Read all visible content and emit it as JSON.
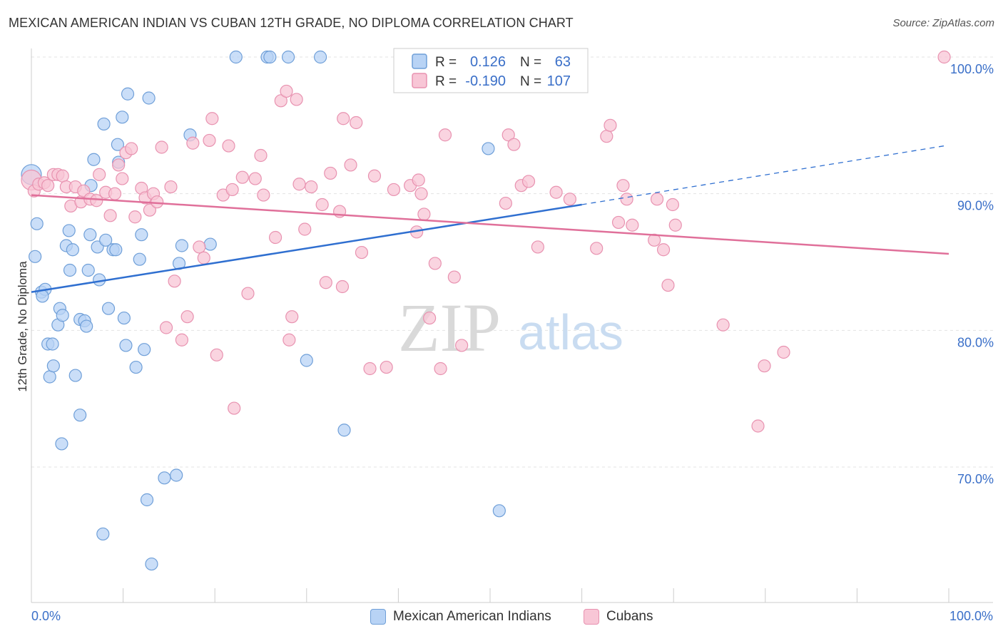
{
  "header": {
    "title": "MEXICAN AMERICAN INDIAN VS CUBAN 12TH GRADE, NO DIPLOMA CORRELATION CHART",
    "source": "Source: ZipAtlas.com"
  },
  "watermark": {
    "zip": "ZIP",
    "atlas": "atlas"
  },
  "colors": {
    "blue_fill": "#b8d3f5",
    "blue_stroke": "#6f9fd8",
    "blue_line": "#2f6fd0",
    "pink_fill": "#f8c6d6",
    "pink_stroke": "#e892b0",
    "pink_line": "#e0709a",
    "value_text": "#3a6fc8"
  },
  "legend": {
    "blue": {
      "r_label": "R =",
      "r_value": "0.126",
      "n_label": "N =",
      "n_value": "63"
    },
    "pink": {
      "r_label": "R =",
      "r_value": "-0.190",
      "n_label": "N =",
      "n_value": "107"
    }
  },
  "bottom_legend": [
    {
      "label": "Mexican American Indians",
      "color": "#b8d3f5",
      "stroke": "#6f9fd8"
    },
    {
      "label": "Cubans",
      "color": "#f8c6d6",
      "stroke": "#e892b0"
    }
  ],
  "chart_data": {
    "type": "scatter",
    "title": "MEXICAN AMERICAN INDIAN VS CUBAN 12TH GRADE, NO DIPLOMA CORRELATION CHART",
    "xlabel": "",
    "ylabel": "12th Grade, No Diploma",
    "xlim": [
      0,
      100
    ],
    "ylim": [
      60.5,
      101.5
    ],
    "x_tick_labels": [
      "0.0%",
      "100.0%"
    ],
    "y_ticks": [
      70,
      80,
      90,
      100
    ],
    "y_tick_labels": [
      "70.0%",
      "80.0%",
      "90.0%",
      "100.0%"
    ],
    "grid": true,
    "legend_placement": "top-center",
    "series": [
      {
        "name": "Mexican American Indians",
        "r": 0.126,
        "n": 63,
        "trend": {
          "x": [
            0,
            60
          ],
          "y": [
            82.8,
            89.2
          ],
          "dashed_extension": {
            "x": [
              60,
              99.5
            ],
            "y": [
              89.2,
              93.5
            ]
          }
        },
        "points": [
          [
            0,
            91.4
          ],
          [
            0.4,
            85.4
          ],
          [
            0.6,
            87.8
          ],
          [
            1.1,
            82.8
          ],
          [
            1.5,
            83.0
          ],
          [
            1.2,
            82.5
          ],
          [
            1.8,
            79.0
          ],
          [
            2.0,
            76.6
          ],
          [
            2.3,
            79.0
          ],
          [
            2.4,
            77.4
          ],
          [
            2.9,
            80.4
          ],
          [
            3.1,
            81.6
          ],
          [
            3.4,
            81.1
          ],
          [
            3.8,
            86.2
          ],
          [
            4.1,
            87.3
          ],
          [
            4.2,
            84.4
          ],
          [
            4.5,
            85.9
          ],
          [
            4.8,
            76.7
          ],
          [
            5.3,
            80.8
          ],
          [
            5.3,
            73.8
          ],
          [
            3.3,
            71.7
          ],
          [
            5.8,
            80.7
          ],
          [
            6.0,
            80.3
          ],
          [
            6.2,
            84.4
          ],
          [
            6.4,
            87.0
          ],
          [
            6.5,
            90.6
          ],
          [
            6.8,
            92.5
          ],
          [
            7.2,
            86.1
          ],
          [
            7.4,
            83.7
          ],
          [
            7.8,
            65.1
          ],
          [
            7.9,
            95.1
          ],
          [
            8.1,
            86.6
          ],
          [
            8.4,
            81.6
          ],
          [
            8.9,
            85.9
          ],
          [
            9.2,
            85.9
          ],
          [
            9.5,
            92.3
          ],
          [
            9.4,
            93.6
          ],
          [
            9.9,
            95.6
          ],
          [
            10.1,
            80.9
          ],
          [
            10.3,
            78.9
          ],
          [
            10.5,
            97.3
          ],
          [
            11.4,
            77.3
          ],
          [
            11.8,
            85.2
          ],
          [
            12.0,
            87.0
          ],
          [
            12.3,
            78.6
          ],
          [
            12.6,
            67.6
          ],
          [
            12.8,
            97.0
          ],
          [
            13.1,
            62.9
          ],
          [
            14.5,
            69.2
          ],
          [
            15.8,
            69.4
          ],
          [
            16.1,
            84.9
          ],
          [
            16.4,
            86.2
          ],
          [
            17.3,
            94.3
          ],
          [
            19.5,
            86.3
          ],
          [
            22.3,
            100
          ],
          [
            25.7,
            100
          ],
          [
            26.0,
            100
          ],
          [
            28.0,
            100
          ],
          [
            30.0,
            77.8
          ],
          [
            31.5,
            100
          ],
          [
            34.1,
            72.7
          ],
          [
            49.8,
            93.3
          ],
          [
            51.0,
            66.8
          ]
        ]
      },
      {
        "name": "Cubans",
        "r": -0.19,
        "n": 107,
        "trend": {
          "x": [
            0,
            100
          ],
          "y": [
            89.9,
            85.6
          ]
        },
        "points": [
          [
            0,
            91.0
          ],
          [
            0.3,
            90.2
          ],
          [
            0.8,
            90.7
          ],
          [
            1.4,
            90.8
          ],
          [
            1.8,
            90.6
          ],
          [
            2.4,
            91.4
          ],
          [
            2.9,
            91.4
          ],
          [
            3.4,
            91.3
          ],
          [
            3.8,
            90.5
          ],
          [
            4.3,
            89.1
          ],
          [
            4.8,
            90.5
          ],
          [
            5.4,
            89.4
          ],
          [
            5.7,
            90.2
          ],
          [
            6.4,
            89.6
          ],
          [
            7.1,
            89.5
          ],
          [
            7.4,
            91.4
          ],
          [
            8.1,
            90.1
          ],
          [
            8.6,
            88.4
          ],
          [
            9.1,
            90.0
          ],
          [
            9.5,
            92.1
          ],
          [
            9.9,
            91.1
          ],
          [
            10.3,
            93.0
          ],
          [
            10.9,
            93.3
          ],
          [
            11.3,
            88.3
          ],
          [
            12.0,
            90.4
          ],
          [
            12.4,
            89.7
          ],
          [
            12.9,
            88.8
          ],
          [
            13.3,
            90.0
          ],
          [
            13.7,
            89.4
          ],
          [
            14.2,
            93.4
          ],
          [
            14.7,
            80.2
          ],
          [
            15.2,
            90.5
          ],
          [
            15.6,
            83.6
          ],
          [
            16.4,
            79.3
          ],
          [
            17.0,
            81.0
          ],
          [
            17.6,
            93.7
          ],
          [
            18.3,
            86.1
          ],
          [
            18.8,
            85.3
          ],
          [
            19.4,
            93.9
          ],
          [
            19.7,
            95.5
          ],
          [
            20.2,
            78.2
          ],
          [
            20.9,
            89.9
          ],
          [
            21.5,
            93.5
          ],
          [
            21.9,
            90.3
          ],
          [
            22.1,
            74.3
          ],
          [
            23.0,
            91.2
          ],
          [
            23.6,
            82.7
          ],
          [
            24.4,
            91.1
          ],
          [
            25.0,
            92.8
          ],
          [
            25.3,
            89.9
          ],
          [
            26.6,
            86.8
          ],
          [
            27.2,
            96.8
          ],
          [
            27.8,
            97.5
          ],
          [
            28.1,
            79.3
          ],
          [
            28.4,
            81.0
          ],
          [
            28.9,
            96.9
          ],
          [
            29.2,
            90.7
          ],
          [
            29.8,
            87.4
          ],
          [
            30.5,
            90.5
          ],
          [
            31.7,
            89.2
          ],
          [
            32.1,
            83.5
          ],
          [
            32.6,
            91.5
          ],
          [
            33.6,
            88.7
          ],
          [
            33.9,
            83.2
          ],
          [
            34.0,
            95.5
          ],
          [
            34.8,
            92.1
          ],
          [
            35.4,
            95.2
          ],
          [
            36.0,
            85.7
          ],
          [
            36.9,
            77.2
          ],
          [
            37.4,
            91.3
          ],
          [
            38.7,
            77.3
          ],
          [
            39.5,
            90.3
          ],
          [
            41.3,
            90.6
          ],
          [
            42.0,
            87.2
          ],
          [
            42.2,
            91.0
          ],
          [
            42.5,
            90.0
          ],
          [
            42.8,
            88.5
          ],
          [
            43.4,
            80.9
          ],
          [
            44.0,
            84.9
          ],
          [
            44.6,
            77.2
          ],
          [
            45.1,
            94.3
          ],
          [
            46.1,
            83.9
          ],
          [
            46.9,
            78.9
          ],
          [
            51.7,
            89.3
          ],
          [
            52.0,
            94.3
          ],
          [
            52.6,
            93.6
          ],
          [
            53.4,
            90.6
          ],
          [
            54.2,
            90.9
          ],
          [
            55.2,
            86.1
          ],
          [
            57.2,
            90.1
          ],
          [
            58.7,
            89.6
          ],
          [
            61.6,
            86.0
          ],
          [
            62.7,
            94.2
          ],
          [
            63.1,
            95.0
          ],
          [
            64.0,
            87.9
          ],
          [
            64.5,
            90.6
          ],
          [
            64.9,
            89.6
          ],
          [
            65.5,
            87.7
          ],
          [
            67.9,
            86.6
          ],
          [
            68.2,
            89.6
          ],
          [
            68.9,
            85.9
          ],
          [
            69.4,
            83.3
          ],
          [
            69.9,
            89.2
          ],
          [
            70.2,
            87.7
          ],
          [
            75.4,
            80.4
          ],
          [
            79.2,
            73.0
          ],
          [
            79.9,
            77.4
          ],
          [
            82.0,
            78.4
          ],
          [
            99.5,
            100
          ]
        ]
      }
    ]
  }
}
